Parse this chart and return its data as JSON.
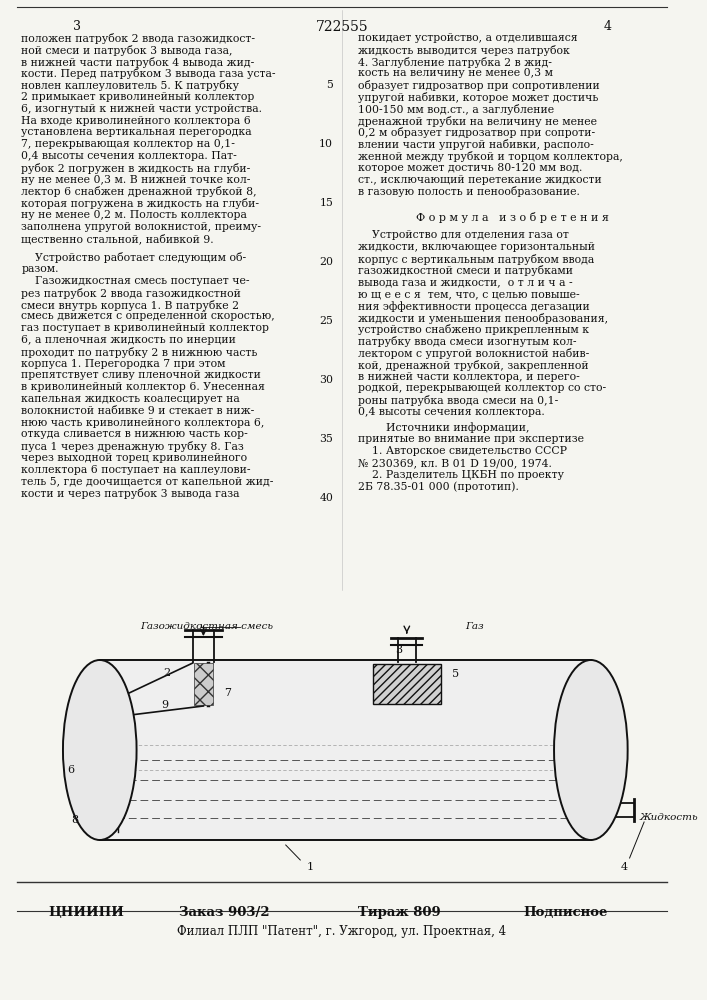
{
  "bg_color": "#f5f5f0",
  "text_color": "#1a1a1a",
  "page_number_left": "3",
  "page_number_center": "722555",
  "page_number_right": "4",
  "col1_text_block1": [
    "положен патрубок 2 ввода газожидкост-",
    "ной смеси и патрубок 3 вывода газа,",
    "в нижней части патрубок 4 вывода жид-",
    "кости. Перед патрубком 3 вывода газа уста-",
    "новлен каплеуловитель 5. К патрубку",
    "2 примыкает криволинейный коллектор",
    "6, изогнутый к нижней части устройства.",
    "На входе криволинейного коллектора 6",
    "установлена вертикальная перегородка",
    "7, перекрывающая коллектор на 0,1-",
    "0,4 высоты сечения коллектора. Пат-",
    "рубок 2 погружен в жидкость на глуби-",
    "ну не менее 0,3 м. В нижней точке кол-",
    "лектор 6 снабжен дренажной трубкой 8,",
    "которая погружена в жидкость на глуби-",
    "ну не менее 0,2 м. Полость коллектора",
    "заполнена упругой волокнистой, преиму-",
    "щественно стальной, набивкой 9."
  ],
  "col1_para2_indent": "    Устройство работает следующим об-",
  "col1_para2_cont": "разом.",
  "col1_text_block2": [
    "    Газожидкостная смесь поступает че-",
    "рез патрубок 2 ввода газожидкостной",
    "смеси внутрь корпуса 1. В патрубке 2",
    "смесь движется с определенной скоростью,",
    "газ поступает в криволинейный коллектор",
    "6, а пленочная жидкость по инерции",
    "проходит по патрубку 2 в нижнюю часть",
    "корпуса 1. Перегородка 7 при этом",
    "препятствует сливу пленочной жидкости",
    "в криволинейный коллектор 6. Унесенная",
    "капельная жидкость коалесцирует на",
    "волокнистой набивке 9 и стекает в ниж-",
    "нюю часть криволинейного коллектора 6,",
    "откуда сливается в нижнюю часть кор-",
    "пуса 1 через дренажную трубку 8. Газ",
    "через выходной торец криволинейного",
    "коллектора 6 поступает на каплеулови-",
    "тель 5, где доочищается от капельной жид-",
    "кости и через патрубок 3 вывода газа"
  ],
  "col2_text_block1": [
    "покидает устройство, а отделившаяся",
    "жидкость выводится через патрубок",
    "4. Заглубление патрубка 2 в жид-",
    "кость на величину не менее 0,3 м",
    "образует гидрозатвор при сопротивлении",
    "упругой набивки, которое может достичь",
    "100-150 мм вод.ст., а заглубление",
    "дренажной трубки на величину не менее",
    "0,2 м образует гидрозатвор при сопроти-",
    "влении части упругой набивки, располо-",
    "женной между трубкой и торцом коллектора,",
    "которое может достичь 80-120 мм вод.",
    "ст., исключающий перетекание жидкости",
    "в газовую полость и пенообразование."
  ],
  "formula_header": "Ф о р м у л а   и з о б р е т е н и я",
  "formula_text": [
    "    Устройство для отделения газа от",
    "жидкости, включающее горизонтальный",
    "корпус с вертикальным патрубком ввода",
    "газожидкостной смеси и патрубками",
    "вывода газа и жидкости,  о т л и ч а -",
    "ю щ е е с я  тем, что, с целью повыше-",
    "ния эффективности процесса дегазации",
    "жидкости и уменьшения пенообразования,",
    "устройство снабжено прикрепленным к",
    "патрубку ввода смеси изогнутым кол-",
    "лектором с упругой волокнистой набив-",
    "кой, дренажной трубкой, закрепленной",
    "в нижней части коллектора, и перего-",
    "родкой, перекрывающей коллектор со сто-",
    "роны патрубка ввода смеси на 0,1-",
    "0,4 высоты сечения коллектора."
  ],
  "sources_header": "        Источники информации,",
  "sources_subheader": "принятые во внимание при экспертизе",
  "source1": "    1. Авторское свидетельство СССР",
  "source1b": "№ 230369, кл. В 01 D 19/00, 1974.",
  "source2": "    2. Разделитель ЦКБН по проекту",
  "source2b": "2Б 78.35-01 000 (прототип).",
  "line_nums": [
    [
      5,
      4
    ],
    [
      10,
      9
    ],
    [
      15,
      14
    ],
    [
      20,
      19
    ],
    [
      25,
      24
    ],
    [
      30,
      29
    ],
    [
      35,
      34
    ],
    [
      40,
      39
    ]
  ],
  "footer_org": "ЦНИИПИ",
  "footer_order": "Заказ 903/2",
  "footer_print": "Тираж 809",
  "footer_sign": "Подписное",
  "footer_branch": "Филиал ПЛП \"Патент\", г. Ужгород, ул. Проектная, 4",
  "diagram_label_gas_liquid": "Газожидкостная смесь",
  "diagram_label_gas": "Газ",
  "diagram_label_liquid": "Жидкость"
}
